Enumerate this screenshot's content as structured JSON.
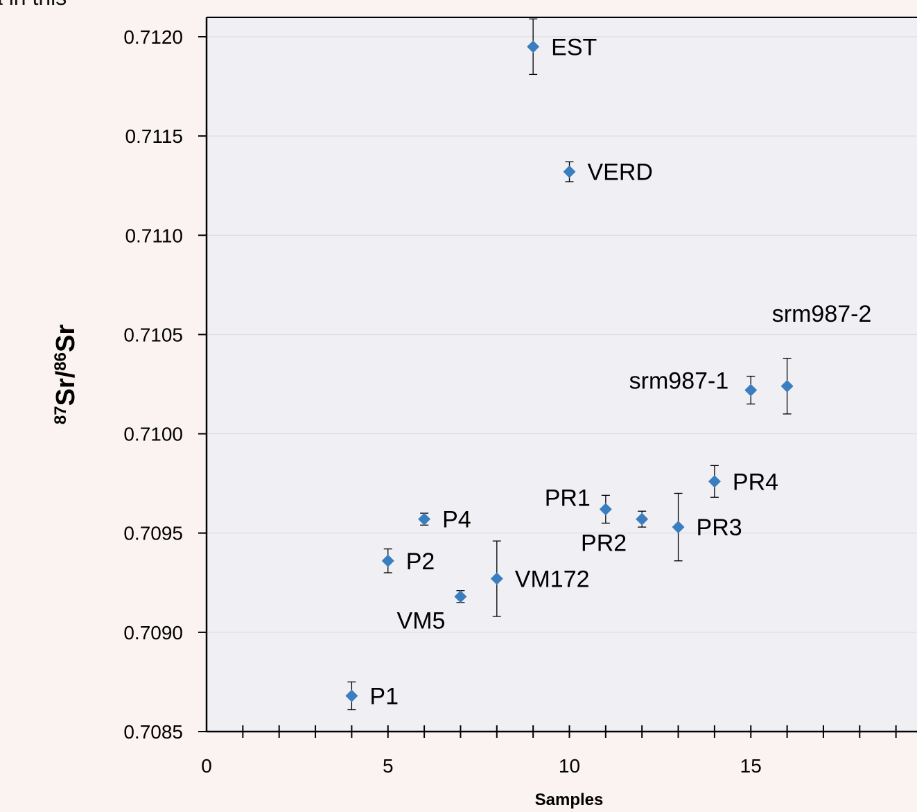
{
  "background_text": "a in this",
  "chart_data": {
    "type": "scatter",
    "title": "",
    "xlabel": "Samples",
    "ylabel_parts": {
      "sup1": "87",
      "base1": "Sr/",
      "sup2": "86",
      "base2": "Sr"
    },
    "xlim": [
      0,
      19.5
    ],
    "ylim": [
      0.7085,
      0.7121
    ],
    "x_ticks": [
      0,
      5,
      10,
      15
    ],
    "x_minor_tick_step": 1,
    "y_ticks": [
      "0.7085",
      "0.7090",
      "0.7095",
      "0.7100",
      "0.7105",
      "0.7110",
      "0.7115",
      "0.7120"
    ],
    "grid": true,
    "legend": "none",
    "marker": "diamond",
    "colors": {
      "marker": "#3a7ebf",
      "plot_background": "#f0eff4",
      "page_background": "#fbf3f2",
      "grid": "#d9d9d9",
      "axis": "#000000"
    },
    "points": [
      {
        "label": "P1",
        "x": 4,
        "y": 0.70868,
        "err": 7e-05,
        "label_pos": "right"
      },
      {
        "label": "P2",
        "x": 5,
        "y": 0.70936,
        "err": 6e-05,
        "label_pos": "right"
      },
      {
        "label": "P4",
        "x": 6,
        "y": 0.70957,
        "err": 3e-05,
        "label_pos": "right"
      },
      {
        "label": "VM5",
        "x": 7,
        "y": 0.70918,
        "err": 3e-05,
        "label_pos": "below-left"
      },
      {
        "label": "VM172",
        "x": 8,
        "y": 0.70927,
        "err": 0.00019,
        "label_pos": "right"
      },
      {
        "label": "EST",
        "x": 9,
        "y": 0.71195,
        "err": 0.00014,
        "label_pos": "right"
      },
      {
        "label": "VERD",
        "x": 10,
        "y": 0.71132,
        "err": 5e-05,
        "label_pos": "right"
      },
      {
        "label": "PR1",
        "x": 11,
        "y": 0.70962,
        "err": 7e-05,
        "label_pos": "above-left"
      },
      {
        "label": "PR2",
        "x": 12,
        "y": 0.70957,
        "err": 4e-05,
        "label_pos": "below-left"
      },
      {
        "label": "PR3",
        "x": 13,
        "y": 0.70953,
        "err": 0.00017,
        "label_pos": "right"
      },
      {
        "label": "PR4",
        "x": 14,
        "y": 0.70976,
        "err": 8e-05,
        "label_pos": "right"
      },
      {
        "label": "srm987-1",
        "x": 15,
        "y": 0.71022,
        "err": 7e-05,
        "label_pos": "left"
      },
      {
        "label": "srm987-2",
        "x": 16,
        "y": 0.71024,
        "err": 0.00014,
        "label_pos": "above-far"
      }
    ]
  }
}
